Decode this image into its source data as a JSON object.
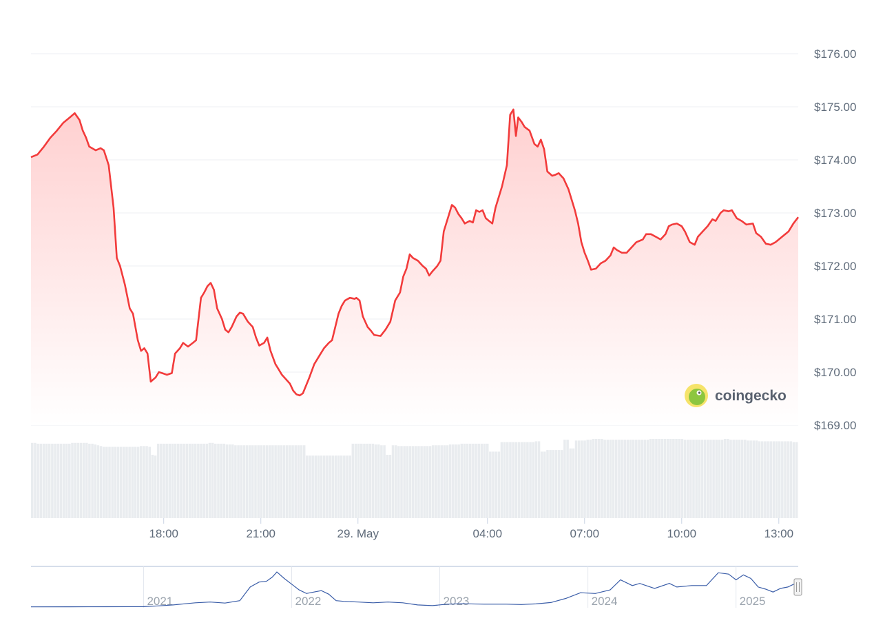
{
  "chart_data": {
    "type": "area",
    "title": "",
    "xlabel": "",
    "ylabel": "",
    "currency_symbol": "$",
    "ylim": [
      168.7,
      176.6
    ],
    "y_ticks": [
      "$169.00",
      "$170.00",
      "$171.00",
      "$172.00",
      "$173.00",
      "$174.00",
      "$175.00",
      "$176.00"
    ],
    "y_tick_values": [
      169,
      170,
      171,
      172,
      173,
      174,
      175,
      176
    ],
    "x_ticks": [
      "18:00",
      "21:00",
      "29. May",
      "04:00",
      "07:00",
      "10:00",
      "13:00"
    ],
    "x_tick_hours": [
      18,
      21,
      24,
      28,
      31,
      34,
      37
    ],
    "x_range_hours": [
      13.9,
      37.6
    ],
    "series": [
      {
        "points": [
          [
            13.9,
            174.05
          ],
          [
            14.1,
            174.1
          ],
          [
            14.3,
            174.25
          ],
          [
            14.5,
            174.42
          ],
          [
            14.7,
            174.55
          ],
          [
            14.9,
            174.7
          ],
          [
            15.1,
            174.8
          ],
          [
            15.25,
            174.88
          ],
          [
            15.4,
            174.75
          ],
          [
            15.5,
            174.55
          ],
          [
            15.6,
            174.42
          ],
          [
            15.7,
            174.25
          ],
          [
            15.9,
            174.18
          ],
          [
            16.05,
            174.22
          ],
          [
            16.15,
            174.18
          ],
          [
            16.3,
            173.9
          ],
          [
            16.45,
            173.1
          ],
          [
            16.55,
            172.15
          ],
          [
            16.65,
            172.0
          ],
          [
            16.8,
            171.65
          ],
          [
            16.95,
            171.2
          ],
          [
            17.05,
            171.1
          ],
          [
            17.2,
            170.6
          ],
          [
            17.3,
            170.4
          ],
          [
            17.4,
            170.45
          ],
          [
            17.5,
            170.35
          ],
          [
            17.6,
            169.82
          ],
          [
            17.75,
            169.9
          ],
          [
            17.85,
            170.0
          ],
          [
            17.95,
            169.98
          ],
          [
            18.1,
            169.95
          ],
          [
            18.25,
            169.98
          ],
          [
            18.35,
            170.35
          ],
          [
            18.5,
            170.45
          ],
          [
            18.6,
            170.55
          ],
          [
            18.75,
            170.48
          ],
          [
            18.9,
            170.55
          ],
          [
            19.0,
            170.6
          ],
          [
            19.15,
            171.4
          ],
          [
            19.25,
            171.5
          ],
          [
            19.35,
            171.62
          ],
          [
            19.45,
            171.68
          ],
          [
            19.55,
            171.55
          ],
          [
            19.65,
            171.2
          ],
          [
            19.8,
            171.0
          ],
          [
            19.9,
            170.8
          ],
          [
            20.0,
            170.75
          ],
          [
            20.1,
            170.85
          ],
          [
            20.25,
            171.05
          ],
          [
            20.35,
            171.12
          ],
          [
            20.45,
            171.1
          ],
          [
            20.6,
            170.95
          ],
          [
            20.75,
            170.85
          ],
          [
            20.85,
            170.65
          ],
          [
            20.95,
            170.5
          ],
          [
            21.1,
            170.55
          ],
          [
            21.2,
            170.65
          ],
          [
            21.3,
            170.4
          ],
          [
            21.45,
            170.15
          ],
          [
            21.55,
            170.05
          ],
          [
            21.65,
            169.95
          ],
          [
            21.8,
            169.85
          ],
          [
            21.9,
            169.78
          ],
          [
            22.0,
            169.65
          ],
          [
            22.1,
            169.58
          ],
          [
            22.2,
            169.56
          ],
          [
            22.3,
            169.6
          ],
          [
            22.4,
            169.75
          ],
          [
            22.5,
            169.9
          ],
          [
            22.65,
            170.15
          ],
          [
            22.8,
            170.3
          ],
          [
            22.95,
            170.45
          ],
          [
            23.1,
            170.55
          ],
          [
            23.2,
            170.6
          ],
          [
            23.3,
            170.85
          ],
          [
            23.4,
            171.1
          ],
          [
            23.5,
            171.25
          ],
          [
            23.6,
            171.35
          ],
          [
            23.75,
            171.4
          ],
          [
            23.9,
            171.38
          ],
          [
            23.95,
            171.4
          ],
          [
            24.05,
            171.35
          ],
          [
            24.15,
            171.05
          ],
          [
            24.3,
            170.85
          ],
          [
            24.4,
            170.78
          ],
          [
            24.5,
            170.7
          ],
          [
            24.7,
            170.68
          ],
          [
            24.85,
            170.8
          ],
          [
            25.0,
            170.95
          ],
          [
            25.15,
            171.35
          ],
          [
            25.3,
            171.5
          ],
          [
            25.4,
            171.8
          ],
          [
            25.5,
            171.95
          ],
          [
            25.6,
            172.22
          ],
          [
            25.7,
            172.15
          ],
          [
            25.85,
            172.1
          ],
          [
            26.0,
            172.0
          ],
          [
            26.1,
            171.95
          ],
          [
            26.2,
            171.82
          ],
          [
            26.3,
            171.9
          ],
          [
            26.45,
            172.0
          ],
          [
            26.55,
            172.1
          ],
          [
            26.65,
            172.65
          ],
          [
            26.8,
            172.95
          ],
          [
            26.9,
            173.15
          ],
          [
            27.0,
            173.1
          ],
          [
            27.1,
            172.98
          ],
          [
            27.2,
            172.9
          ],
          [
            27.3,
            172.8
          ],
          [
            27.45,
            172.85
          ],
          [
            27.55,
            172.82
          ],
          [
            27.65,
            173.05
          ],
          [
            27.75,
            173.02
          ],
          [
            27.85,
            173.05
          ],
          [
            27.95,
            172.9
          ],
          [
            28.05,
            172.85
          ],
          [
            28.15,
            172.8
          ],
          [
            28.25,
            173.1
          ],
          [
            28.45,
            173.5
          ],
          [
            28.6,
            173.9
          ],
          [
            28.7,
            174.85
          ],
          [
            28.8,
            174.95
          ],
          [
            28.88,
            174.45
          ],
          [
            28.95,
            174.8
          ],
          [
            29.05,
            174.72
          ],
          [
            29.15,
            174.62
          ],
          [
            29.3,
            174.55
          ],
          [
            29.45,
            174.3
          ],
          [
            29.55,
            174.25
          ],
          [
            29.65,
            174.38
          ],
          [
            29.75,
            174.2
          ],
          [
            29.85,
            173.78
          ],
          [
            30.0,
            173.7
          ],
          [
            30.1,
            173.72
          ],
          [
            30.2,
            173.75
          ],
          [
            30.35,
            173.65
          ],
          [
            30.5,
            173.45
          ],
          [
            30.6,
            173.25
          ],
          [
            30.7,
            173.05
          ],
          [
            30.8,
            172.8
          ],
          [
            30.9,
            172.45
          ],
          [
            31.0,
            172.25
          ],
          [
            31.1,
            172.1
          ],
          [
            31.2,
            171.93
          ],
          [
            31.35,
            171.95
          ],
          [
            31.5,
            172.05
          ],
          [
            31.65,
            172.1
          ],
          [
            31.8,
            172.2
          ],
          [
            31.9,
            172.35
          ],
          [
            32.0,
            172.3
          ],
          [
            32.15,
            172.25
          ],
          [
            32.3,
            172.25
          ],
          [
            32.45,
            172.35
          ],
          [
            32.6,
            172.45
          ],
          [
            32.8,
            172.5
          ],
          [
            32.9,
            172.6
          ],
          [
            33.05,
            172.6
          ],
          [
            33.2,
            172.55
          ],
          [
            33.35,
            172.5
          ],
          [
            33.5,
            172.6
          ],
          [
            33.6,
            172.75
          ],
          [
            33.7,
            172.78
          ],
          [
            33.85,
            172.8
          ],
          [
            34.0,
            172.75
          ],
          [
            34.1,
            172.65
          ],
          [
            34.25,
            172.45
          ],
          [
            34.4,
            172.4
          ],
          [
            34.5,
            172.55
          ],
          [
            34.65,
            172.65
          ],
          [
            34.8,
            172.75
          ],
          [
            34.95,
            172.88
          ],
          [
            35.05,
            172.85
          ],
          [
            35.2,
            173.0
          ],
          [
            35.3,
            173.05
          ],
          [
            35.45,
            173.03
          ],
          [
            35.55,
            173.05
          ],
          [
            35.7,
            172.9
          ],
          [
            35.85,
            172.85
          ],
          [
            36.0,
            172.78
          ],
          [
            36.2,
            172.8
          ],
          [
            36.3,
            172.62
          ],
          [
            36.45,
            172.55
          ],
          [
            36.6,
            172.42
          ],
          [
            36.75,
            172.4
          ],
          [
            36.9,
            172.45
          ],
          [
            37.1,
            172.55
          ],
          [
            37.3,
            172.65
          ],
          [
            37.45,
            172.8
          ],
          [
            37.6,
            172.92
          ]
        ]
      }
    ],
    "volume": [
      0.95,
      0.95,
      0.94,
      0.94,
      0.94,
      0.94,
      0.94,
      0.94,
      0.94,
      0.94,
      0.94,
      0.94,
      0.94,
      0.94,
      0.95,
      0.95,
      0.95,
      0.95,
      0.95,
      0.95,
      0.94,
      0.94,
      0.93,
      0.92,
      0.91,
      0.9,
      0.9,
      0.9,
      0.9,
      0.9,
      0.9,
      0.9,
      0.9,
      0.9,
      0.9,
      0.9,
      0.9,
      0.9,
      0.91,
      0.91,
      0.91,
      0.9,
      0.8,
      0.79,
      0.94,
      0.94,
      0.94,
      0.94,
      0.94,
      0.94,
      0.94,
      0.94,
      0.94,
      0.94,
      0.94,
      0.94,
      0.94,
      0.94,
      0.94,
      0.94,
      0.94,
      0.94,
      0.95,
      0.95,
      0.94,
      0.94,
      0.94,
      0.94,
      0.93,
      0.93,
      0.93,
      0.92,
      0.92,
      0.92,
      0.92,
      0.92,
      0.92,
      0.92,
      0.92,
      0.92,
      0.92,
      0.92,
      0.92,
      0.92,
      0.92,
      0.92,
      0.92,
      0.92,
      0.92,
      0.92,
      0.92,
      0.92,
      0.92,
      0.92,
      0.92,
      0.92,
      0.79,
      0.79,
      0.79,
      0.79,
      0.79,
      0.79,
      0.79,
      0.79,
      0.79,
      0.79,
      0.79,
      0.79,
      0.79,
      0.79,
      0.79,
      0.79,
      0.94,
      0.94,
      0.94,
      0.94,
      0.94,
      0.94,
      0.94,
      0.94,
      0.93,
      0.93,
      0.92,
      0.92,
      0.8,
      0.8,
      0.92,
      0.92,
      0.91,
      0.91,
      0.91,
      0.91,
      0.91,
      0.91,
      0.91,
      0.91,
      0.91,
      0.91,
      0.91,
      0.91,
      0.92,
      0.92,
      0.92,
      0.92,
      0.92,
      0.92,
      0.93,
      0.93,
      0.93,
      0.93,
      0.94,
      0.94,
      0.94,
      0.94,
      0.94,
      0.94,
      0.94,
      0.94,
      0.94,
      0.94,
      0.84,
      0.84,
      0.84,
      0.84,
      0.96,
      0.96,
      0.96,
      0.96,
      0.96,
      0.96,
      0.96,
      0.96,
      0.96,
      0.96,
      0.96,
      0.96,
      0.97,
      0.97,
      0.84,
      0.84,
      0.86,
      0.86,
      0.86,
      0.86,
      0.86,
      0.86,
      0.99,
      0.99,
      0.88,
      0.88,
      0.98,
      0.98,
      0.98,
      0.98,
      0.99,
      0.99,
      1.0,
      1.0,
      1.0,
      1.0,
      0.99,
      0.99,
      0.99,
      0.99,
      0.99,
      0.99,
      0.99,
      0.99,
      0.99,
      0.99,
      0.99,
      0.99,
      0.99,
      0.99,
      0.99,
      0.99,
      1.0,
      1.0,
      1.0,
      1.0,
      1.0,
      1.0,
      1.0,
      1.0,
      1.0,
      1.0,
      1.0,
      1.0,
      0.99,
      0.99,
      0.99,
      0.99,
      0.99,
      0.99,
      0.99,
      0.99,
      0.99,
      0.99,
      0.99,
      0.99,
      0.99,
      0.99,
      1.0,
      1.0,
      0.99,
      0.99,
      0.99,
      0.99,
      0.99,
      0.99,
      0.98,
      0.98,
      0.98,
      0.98,
      0.97,
      0.97,
      0.97,
      0.97,
      0.97,
      0.97,
      0.97,
      0.97,
      0.97,
      0.97,
      0.97,
      0.97,
      0.96,
      0.96
    ],
    "navigator": {
      "year_labels": [
        "2021",
        "2022",
        "2023",
        "2024",
        "2025"
      ],
      "year_positions": [
        2021,
        2022,
        2023,
        2024,
        2025
      ],
      "x_range": [
        2020.24,
        2025.42
      ],
      "y_range": [
        0,
        260
      ],
      "points": [
        [
          2020.24,
          1.5
        ],
        [
          2020.5,
          2
        ],
        [
          2020.75,
          2.5
        ],
        [
          2021.0,
          3
        ],
        [
          2021.1,
          8
        ],
        [
          2021.2,
          15
        ],
        [
          2021.3,
          25
        ],
        [
          2021.35,
          30
        ],
        [
          2021.45,
          35
        ],
        [
          2021.55,
          28
        ],
        [
          2021.65,
          45
        ],
        [
          2021.72,
          140
        ],
        [
          2021.78,
          175
        ],
        [
          2021.83,
          180
        ],
        [
          2021.87,
          210
        ],
        [
          2021.9,
          245
        ],
        [
          2021.95,
          200
        ],
        [
          2022.0,
          160
        ],
        [
          2022.05,
          120
        ],
        [
          2022.1,
          95
        ],
        [
          2022.2,
          115
        ],
        [
          2022.25,
          90
        ],
        [
          2022.3,
          45
        ],
        [
          2022.35,
          40
        ],
        [
          2022.45,
          35
        ],
        [
          2022.55,
          30
        ],
        [
          2022.65,
          35
        ],
        [
          2022.75,
          30
        ],
        [
          2022.85,
          15
        ],
        [
          2022.95,
          10
        ],
        [
          2023.05,
          20
        ],
        [
          2023.15,
          23
        ],
        [
          2023.3,
          20
        ],
        [
          2023.45,
          20
        ],
        [
          2023.55,
          18
        ],
        [
          2023.65,
          22
        ],
        [
          2023.75,
          32
        ],
        [
          2023.85,
          60
        ],
        [
          2023.95,
          100
        ],
        [
          2024.05,
          95
        ],
        [
          2024.15,
          120
        ],
        [
          2024.22,
          190
        ],
        [
          2024.3,
          150
        ],
        [
          2024.35,
          165
        ],
        [
          2024.45,
          130
        ],
        [
          2024.55,
          165
        ],
        [
          2024.6,
          140
        ],
        [
          2024.7,
          150
        ],
        [
          2024.8,
          150
        ],
        [
          2024.88,
          240
        ],
        [
          2024.95,
          230
        ],
        [
          2025.0,
          190
        ],
        [
          2025.05,
          225
        ],
        [
          2025.1,
          200
        ],
        [
          2025.15,
          140
        ],
        [
          2025.2,
          125
        ],
        [
          2025.25,
          105
        ],
        [
          2025.3,
          130
        ],
        [
          2025.35,
          140
        ],
        [
          2025.42,
          175
        ]
      ]
    },
    "colors": {
      "line": "#f23b3b",
      "area_top": "#ffd0d0",
      "area_bottom": "#ffffff",
      "grid": "#eceff3",
      "volume_bar": "#e9ecef",
      "navigator_line": "#3a5da8",
      "navigator_border": "#c9d3e3"
    }
  },
  "branding": {
    "logo_text": "coingecko",
    "logo_icon": "gecko-icon"
  },
  "navigator_handle_icon": "drag-handle-icon"
}
